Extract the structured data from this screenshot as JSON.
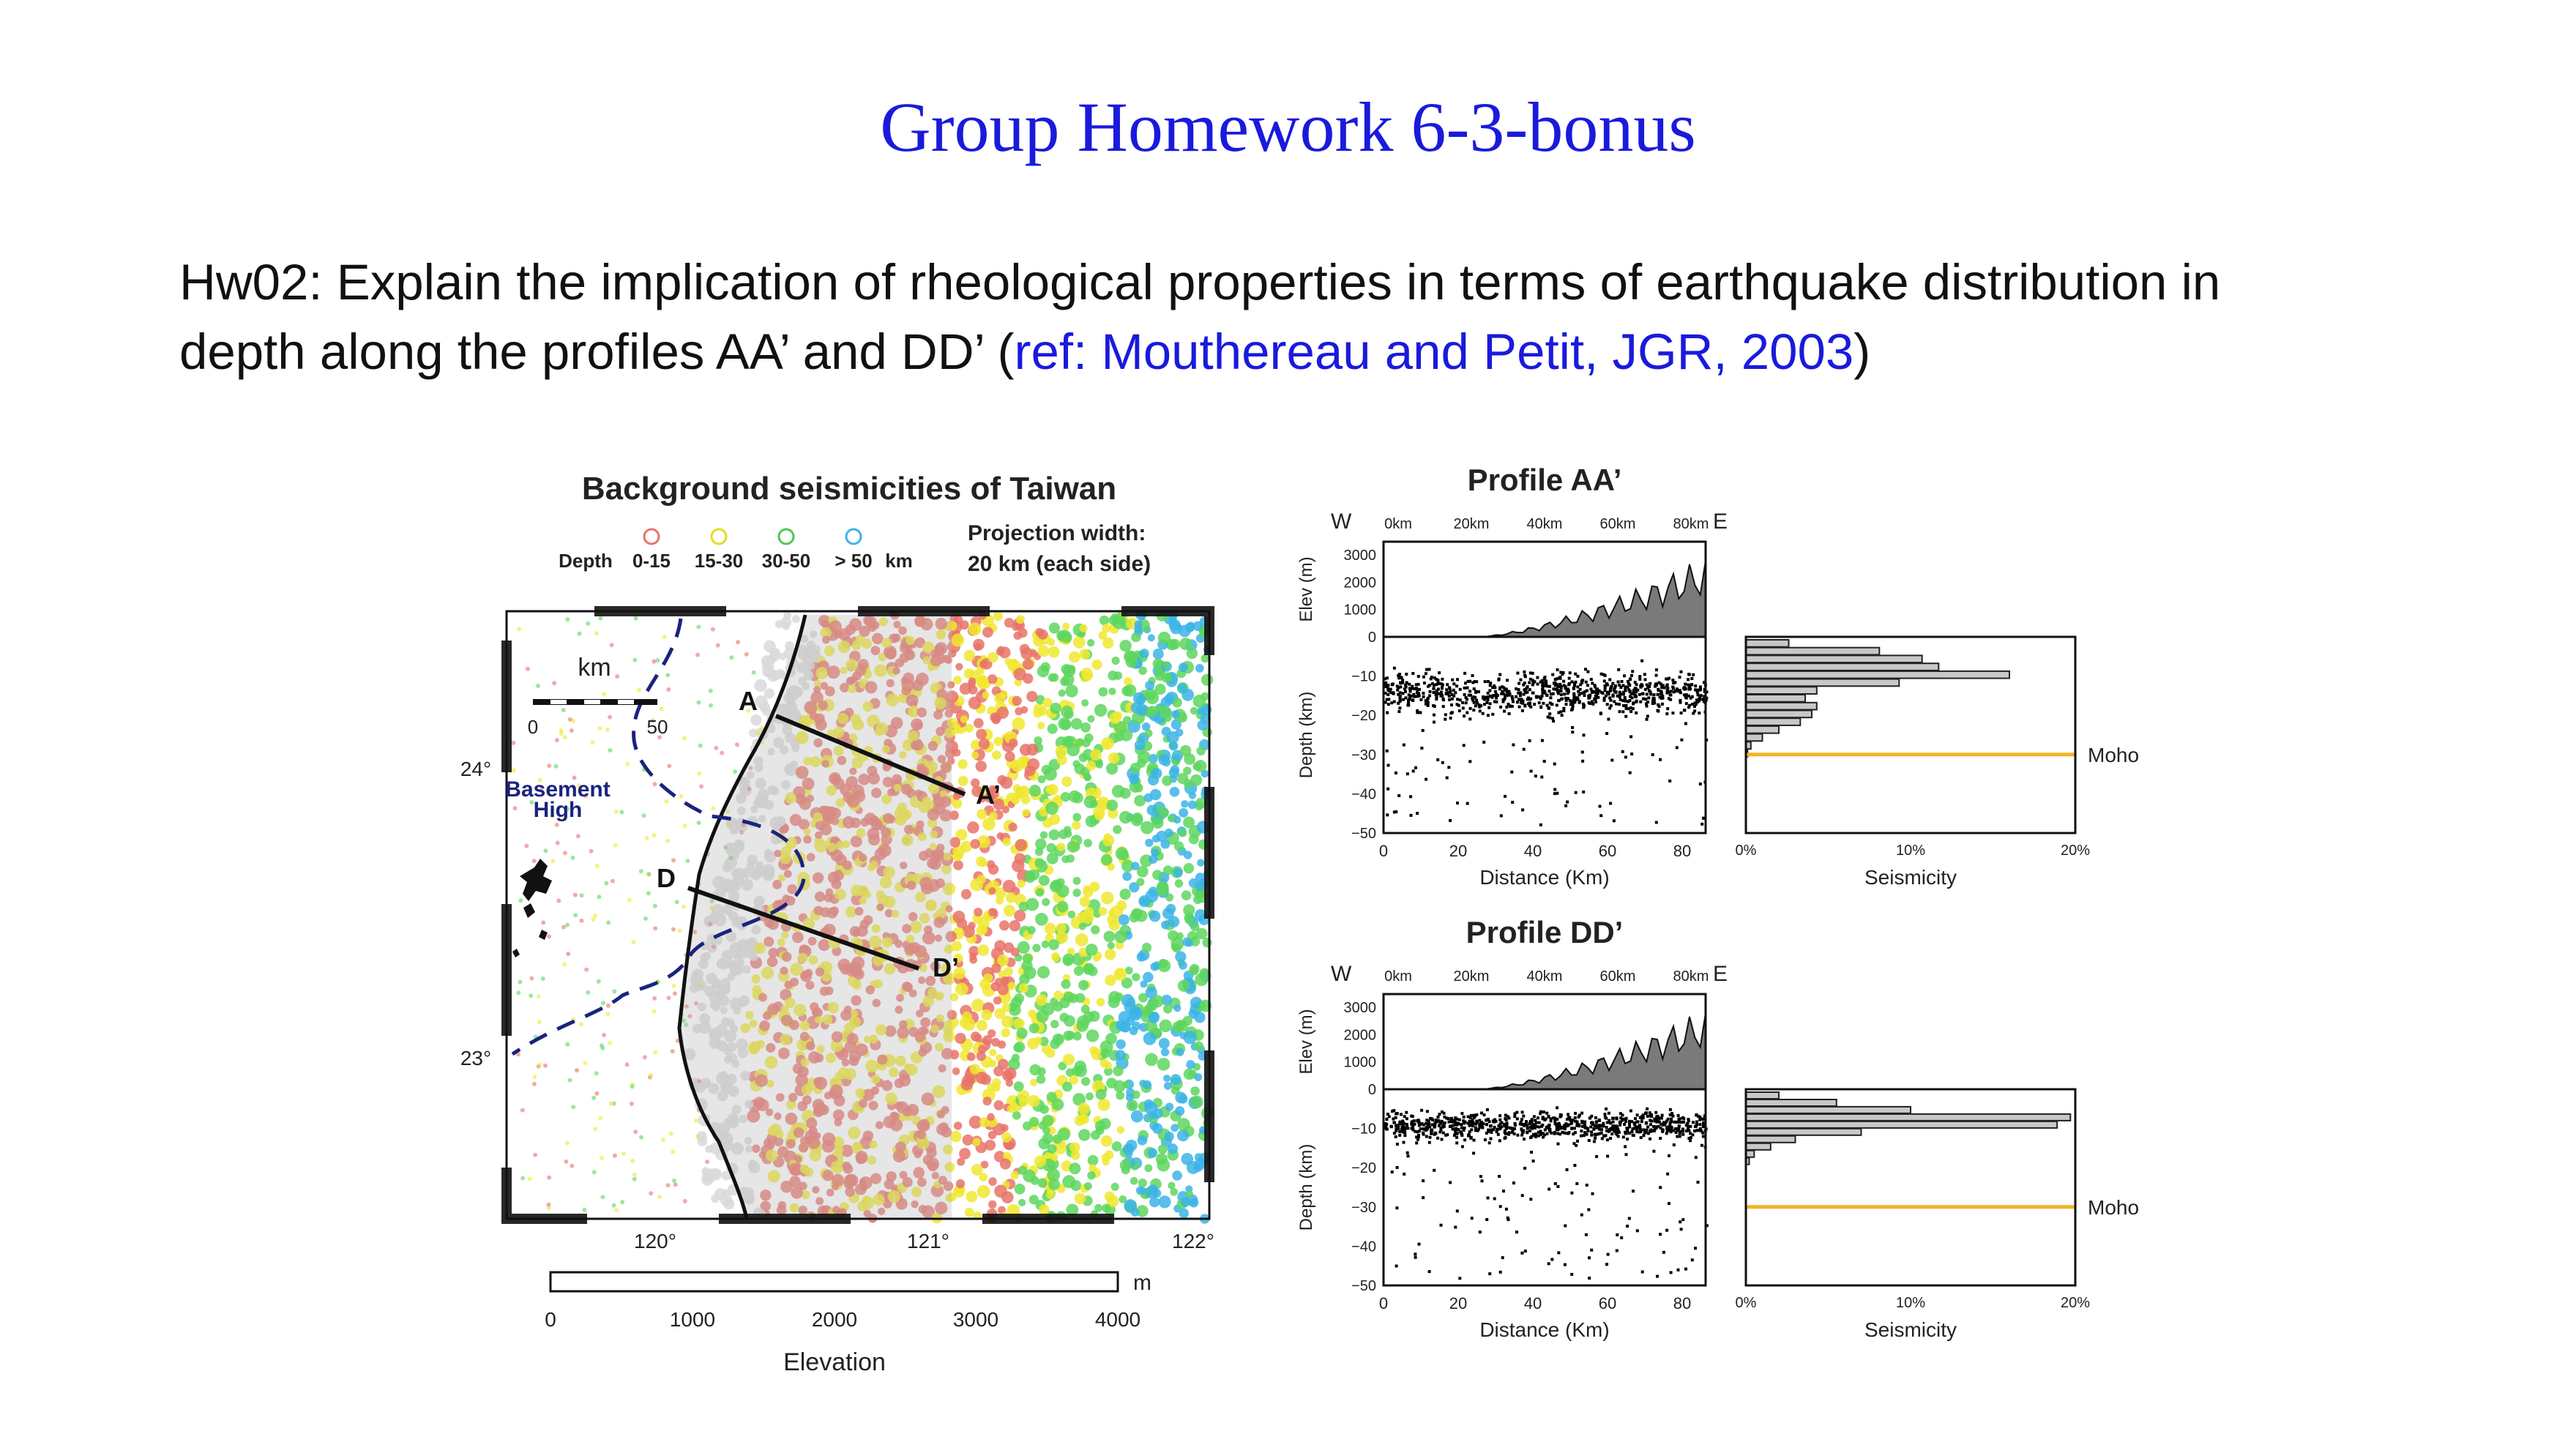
{
  "slide": {
    "title": "Group Homework 6-3-bonus",
    "question_line1": "Hw02: Explain the implication of rheological properties in terms of earthquake distribution in",
    "question_line2_prefix": "depth along the profiles AA’ and DD’ (",
    "question_ref": "ref: Mouthereau and Petit, JGR, 2003",
    "question_line2_suffix": ")"
  },
  "map": {
    "title": "Background seismicities of Taiwan",
    "depth_label": "Depth",
    "depth_classes": [
      {
        "label": "0-15",
        "color": "#e8736a"
      },
      {
        "label": "15-30",
        "color": "#f0e830"
      },
      {
        "label": "30-50",
        "color": "#5ed65e"
      },
      {
        "label": "> 50",
        "color": "#3cb4e6"
      }
    ],
    "depth_unit": "km",
    "projection_line1": "Projection width:",
    "projection_line2": "20 km (each side)",
    "scale_label": "km",
    "scale_start": "0",
    "scale_end": "50",
    "basement_line1": "Basement",
    "basement_line2": "High",
    "lat_labels": [
      "24°",
      "23°"
    ],
    "lon_labels": [
      "120°",
      "121°",
      "122°"
    ],
    "profile_points": {
      "a": "A",
      "a_prime": "A’",
      "d": "D",
      "d_prime": "D’"
    },
    "elevation_bar": {
      "unit": "m",
      "ticks": [
        "0",
        "1000",
        "2000",
        "3000",
        "4000"
      ],
      "label": "Elevation",
      "colors": [
        "#f2f2f2",
        "#dcdcdc",
        "#c4c4c4",
        "#acacac",
        "#949494",
        "#7c7c7c",
        "#5a5a5a",
        "#3a3a3a"
      ]
    }
  },
  "profiles": [
    {
      "title": "Profile AA’",
      "west": "W",
      "east": "E",
      "top_ticks": [
        "0km",
        "20km",
        "40km",
        "60km",
        "80km"
      ],
      "elev_label": "Elev (m)",
      "elev_ticks": [
        "3000",
        "2000",
        "1000",
        "0"
      ],
      "depth_label": "Depth (km)",
      "depth_ticks": [
        "−10",
        "−20",
        "−30",
        "−40",
        "−50"
      ],
      "dist_ticks": [
        "0",
        "20",
        "40",
        "60",
        "80"
      ],
      "dist_label": "Distance (Km)",
      "seis_ticks": [
        "0%",
        "10%",
        "20%"
      ],
      "seis_label": "Seismicity",
      "moho_label": "Moho",
      "histogram": [
        2.6,
        8.1,
        10.7,
        11.7,
        16.0,
        9.3,
        4.3,
        3.6,
        4.3,
        4.0,
        3.3,
        2.0,
        1.0,
        0.3,
        0.1
      ]
    },
    {
      "title": "Profile DD’",
      "west": "W",
      "east": "E",
      "top_ticks": [
        "0km",
        "20km",
        "40km",
        "60km",
        "80km"
      ],
      "elev_label": "Elev (m)",
      "elev_ticks": [
        "3000",
        "2000",
        "1000",
        "0"
      ],
      "depth_label": "Depth (km)",
      "depth_ticks": [
        "−10",
        "−20",
        "−30",
        "−40",
        "−50"
      ],
      "dist_ticks": [
        "0",
        "20",
        "40",
        "60",
        "80"
      ],
      "dist_label": "Distance (Km)",
      "seis_ticks": [
        "0%",
        "10%",
        "20%"
      ],
      "seis_label": "Seismicity",
      "moho_label": "Moho",
      "histogram": [
        2.0,
        5.5,
        10.0,
        19.7,
        18.9,
        7.0,
        3.0,
        1.5,
        0.5,
        0.2
      ]
    }
  ]
}
